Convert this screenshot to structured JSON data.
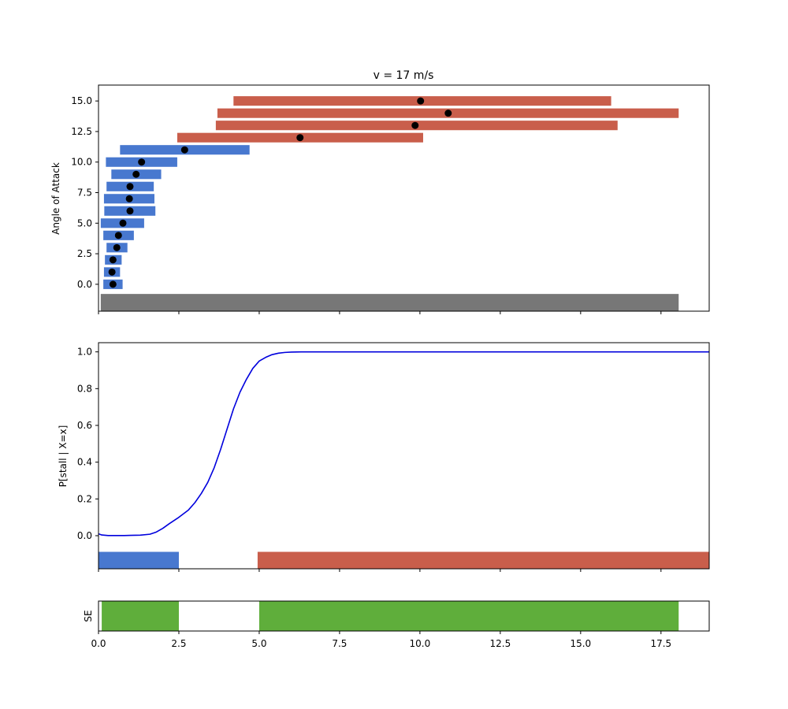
{
  "chart_data": [
    {
      "type": "interval-bars",
      "title": "v = 17 m/s",
      "ylabel": "Angle of Attack",
      "xlabel": "",
      "xlim": [
        0,
        19
      ],
      "ylim": [
        -2.2,
        16.3
      ],
      "yticks": [
        0.0,
        2.5,
        5.0,
        7.5,
        10.0,
        12.5,
        15.0
      ],
      "ytick_labels": [
        "0.0",
        "2.5",
        "5.0",
        "7.5",
        "10.0",
        "12.5",
        "15.0"
      ],
      "colors": {
        "safe": "#4878cf",
        "unsafe": "#c95e4b",
        "base": "#777777",
        "point": "#000000"
      },
      "base_bar": {
        "y": -1.5,
        "x_start": 0.07,
        "x_end": 18.05
      },
      "intervals": [
        {
          "y": 0,
          "x_start": 0.15,
          "x_end": 0.75,
          "point": 0.45,
          "class": "safe"
        },
        {
          "y": 1,
          "x_start": 0.17,
          "x_end": 0.67,
          "point": 0.42,
          "class": "safe"
        },
        {
          "y": 2,
          "x_start": 0.2,
          "x_end": 0.72,
          "point": 0.45,
          "class": "safe"
        },
        {
          "y": 3,
          "x_start": 0.25,
          "x_end": 0.9,
          "point": 0.57,
          "class": "safe"
        },
        {
          "y": 4,
          "x_start": 0.15,
          "x_end": 1.1,
          "point": 0.62,
          "class": "safe"
        },
        {
          "y": 5,
          "x_start": 0.07,
          "x_end": 1.42,
          "point": 0.76,
          "class": "safe"
        },
        {
          "y": 6,
          "x_start": 0.18,
          "x_end": 1.77,
          "point": 0.98,
          "class": "safe"
        },
        {
          "y": 7,
          "x_start": 0.17,
          "x_end": 1.74,
          "point": 0.96,
          "class": "safe"
        },
        {
          "y": 8,
          "x_start": 0.25,
          "x_end": 1.72,
          "point": 0.98,
          "class": "safe"
        },
        {
          "y": 9,
          "x_start": 0.4,
          "x_end": 1.95,
          "point": 1.17,
          "class": "safe"
        },
        {
          "y": 10,
          "x_start": 0.23,
          "x_end": 2.45,
          "point": 1.34,
          "class": "safe"
        },
        {
          "y": 11,
          "x_start": 0.67,
          "x_end": 4.7,
          "point": 2.68,
          "class": "safe"
        },
        {
          "y": 12,
          "x_start": 2.45,
          "x_end": 10.1,
          "point": 6.27,
          "class": "unsafe"
        },
        {
          "y": 13,
          "x_start": 3.65,
          "x_end": 16.15,
          "point": 9.85,
          "class": "unsafe"
        },
        {
          "y": 14,
          "x_start": 3.7,
          "x_end": 18.05,
          "point": 10.88,
          "class": "unsafe"
        },
        {
          "y": 15,
          "x_start": 4.2,
          "x_end": 15.95,
          "point": 10.02,
          "class": "unsafe"
        }
      ]
    },
    {
      "type": "line",
      "title": "",
      "ylabel": "P[stall | X=x]",
      "xlabel": "",
      "xlim": [
        0,
        19
      ],
      "ylim": [
        -0.18,
        1.05
      ],
      "yticks": [
        0.0,
        0.2,
        0.4,
        0.6,
        0.8,
        1.0
      ],
      "ytick_labels": [
        "0.0",
        "0.2",
        "0.4",
        "0.6",
        "0.8",
        "1.0"
      ],
      "line_color": "#0000dd",
      "series": [
        {
          "name": "P[stall | X=x]",
          "x": [
            0,
            0.1,
            0.3,
            0.5,
            0.8,
            1.0,
            1.3,
            1.6,
            1.8,
            2.0,
            2.2,
            2.5,
            2.8,
            3.0,
            3.2,
            3.4,
            3.6,
            3.8,
            4.0,
            4.2,
            4.4,
            4.6,
            4.8,
            5.0,
            5.2,
            5.4,
            5.6,
            5.8,
            6.0,
            6.3,
            6.6,
            7.0,
            8.0,
            10.0,
            12.5,
            15.0,
            17.5,
            19.0
          ],
          "y": [
            0.01,
            0.004,
            0.001,
            0.001,
            0.001,
            0.002,
            0.003,
            0.008,
            0.02,
            0.04,
            0.065,
            0.1,
            0.14,
            0.18,
            0.23,
            0.29,
            0.37,
            0.47,
            0.58,
            0.69,
            0.78,
            0.85,
            0.91,
            0.95,
            0.97,
            0.985,
            0.993,
            0.997,
            0.999,
            1.0,
            1.0,
            1.0,
            1.0,
            1.0,
            1.0,
            1.0,
            1.0,
            1.0
          ]
        }
      ],
      "band_y": -0.135,
      "bands": [
        {
          "x_start": 0.0,
          "x_end": 2.5,
          "class": "safe"
        },
        {
          "x_start": 4.95,
          "x_end": 19.0,
          "class": "unsafe"
        }
      ]
    },
    {
      "type": "band",
      "title": "",
      "ylabel": "SE",
      "xlabel": "",
      "xlim": [
        0,
        19
      ],
      "xticks": [
        0.0,
        2.5,
        5.0,
        7.5,
        10.0,
        12.5,
        15.0,
        17.5
      ],
      "xtick_labels": [
        "0.0",
        "2.5",
        "5.0",
        "7.5",
        "10.0",
        "12.5",
        "15.0",
        "17.5"
      ],
      "color": "#5fae3b",
      "bands": [
        {
          "x_start": 0.1,
          "x_end": 2.5
        },
        {
          "x_start": 5.0,
          "x_end": 18.05
        }
      ]
    }
  ]
}
